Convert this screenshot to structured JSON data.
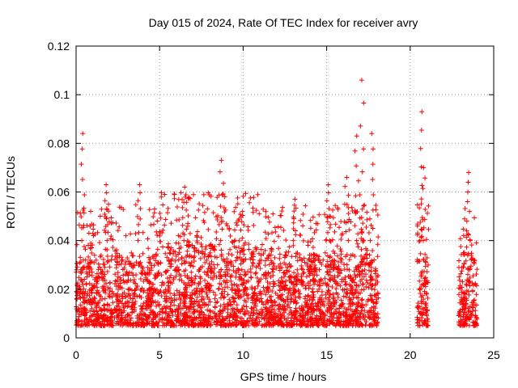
{
  "chart_data": {
    "type": "scatter",
    "title": "Day 015 of 2024, Rate Of TEC Index for receiver avry",
    "xlabel": "GPS time / hours",
    "ylabel": "ROTI / TECUs",
    "xlim": [
      0,
      25
    ],
    "ylim": [
      0,
      0.12
    ],
    "grid": true,
    "marker": "+",
    "color": "#ff0000",
    "xticks": [
      {
        "value": 0,
        "label": "0"
      },
      {
        "value": 5,
        "label": "5"
      },
      {
        "value": 10,
        "label": "10"
      },
      {
        "value": 15,
        "label": "15"
      },
      {
        "value": 20,
        "label": "20"
      },
      {
        "value": 25,
        "label": "25"
      }
    ],
    "yticks": [
      {
        "value": 0,
        "label": "0"
      },
      {
        "value": 0.02,
        "label": "0.02"
      },
      {
        "value": 0.04,
        "label": "0.04"
      },
      {
        "value": 0.06,
        "label": "0.06"
      },
      {
        "value": 0.08,
        "label": "0.08"
      },
      {
        "value": 0.1,
        "label": "0.1"
      },
      {
        "value": 0.12,
        "label": "0.12"
      }
    ],
    "data_segments": [
      {
        "x_start": 0.0,
        "x_end": 18.1
      },
      {
        "x_start": 20.4,
        "x_end": 21.1
      },
      {
        "x_start": 22.9,
        "x_end": 24.0
      }
    ],
    "typical_band": [
      0.005,
      0.035
    ],
    "peaks": [
      {
        "x": 0.4,
        "y": 0.084
      },
      {
        "x": 1.8,
        "y": 0.063
      },
      {
        "x": 3.8,
        "y": 0.063
      },
      {
        "x": 6.5,
        "y": 0.062
      },
      {
        "x": 8.7,
        "y": 0.073
      },
      {
        "x": 13.1,
        "y": 0.057
      },
      {
        "x": 15.1,
        "y": 0.063
      },
      {
        "x": 16.2,
        "y": 0.066
      },
      {
        "x": 16.8,
        "y": 0.083
      },
      {
        "x": 17.1,
        "y": 0.106
      },
      {
        "x": 17.7,
        "y": 0.084
      },
      {
        "x": 20.7,
        "y": 0.093
      },
      {
        "x": 20.8,
        "y": 0.07
      },
      {
        "x": 23.5,
        "y": 0.068
      }
    ]
  }
}
